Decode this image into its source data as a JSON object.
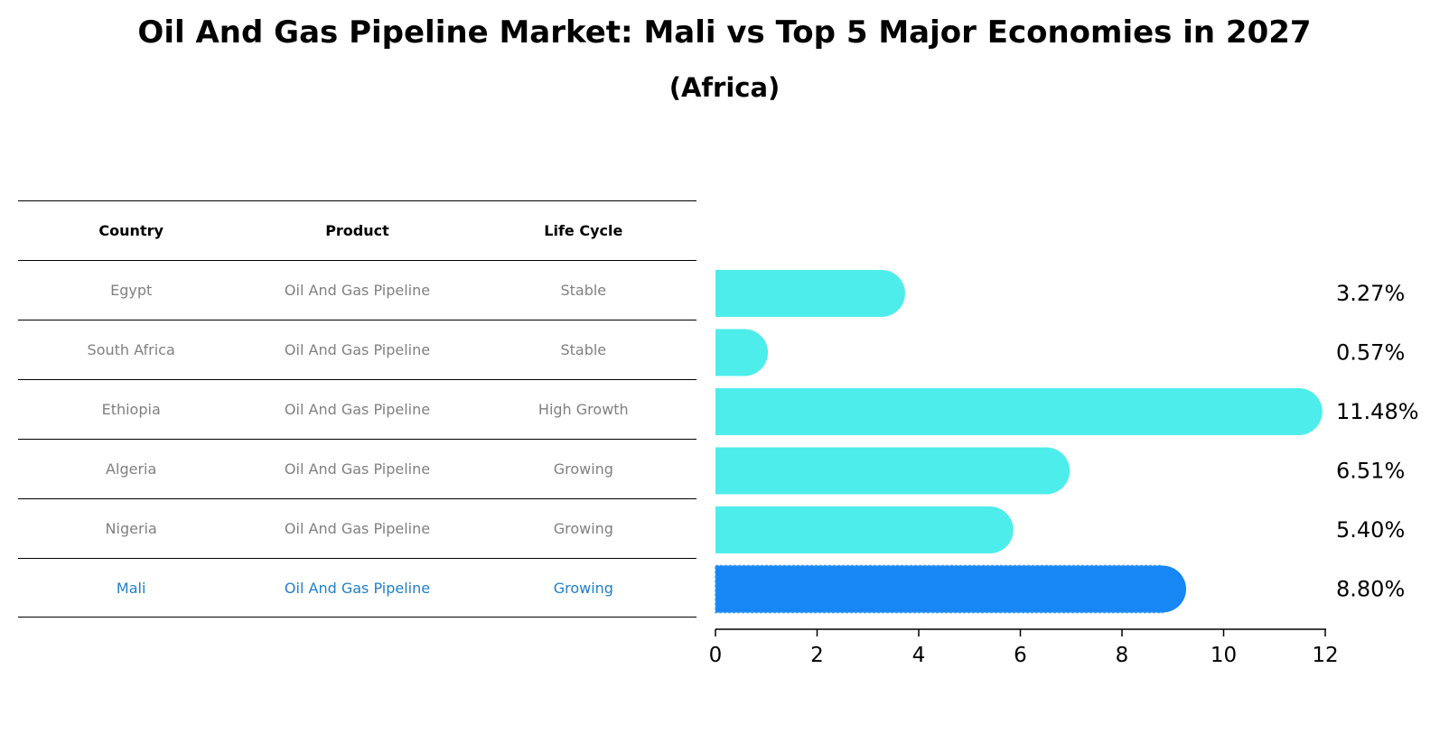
{
  "colors": {
    "bar": "#4DEDEB",
    "highlight": "#1787F5",
    "highlight_text": "#1f7fc9"
  },
  "table": {
    "headers": [
      "Country",
      "Product",
      "Life Cycle"
    ],
    "rows": [
      [
        "Egypt",
        "Oil And Gas Pipeline",
        "Stable"
      ],
      [
        "South Africa",
        "Oil And Gas Pipeline",
        "Stable"
      ],
      [
        "Ethiopia",
        "Oil And Gas Pipeline",
        "High Growth"
      ],
      [
        "Algeria",
        "Oil And Gas Pipeline",
        "Growing"
      ],
      [
        "Nigeria",
        "Oil And Gas Pipeline",
        "Growing"
      ],
      [
        "Mali",
        "Oil And Gas Pipeline",
        "Growing"
      ]
    ]
  },
  "chart_data": {
    "type": "bar",
    "orientation": "horizontal",
    "title": "Oil And Gas Pipeline Market: Mali vs Top 5 Major Economies in 2027",
    "subtitle": "(Africa)",
    "categories": [
      "Egypt",
      "South Africa",
      "Ethiopia",
      "Algeria",
      "Nigeria",
      "Mali"
    ],
    "values": [
      3.27,
      0.57,
      11.48,
      6.51,
      5.4,
      8.8
    ],
    "labels": [
      "3.27%",
      "0.57%",
      "11.48%",
      "6.51%",
      "5.40%",
      "8.80%"
    ],
    "highlight": "Mali",
    "xlim": [
      0,
      12
    ],
    "xticks": [
      0,
      2,
      4,
      6,
      8,
      10,
      12
    ],
    "xlabel": "",
    "ylabel": ""
  }
}
